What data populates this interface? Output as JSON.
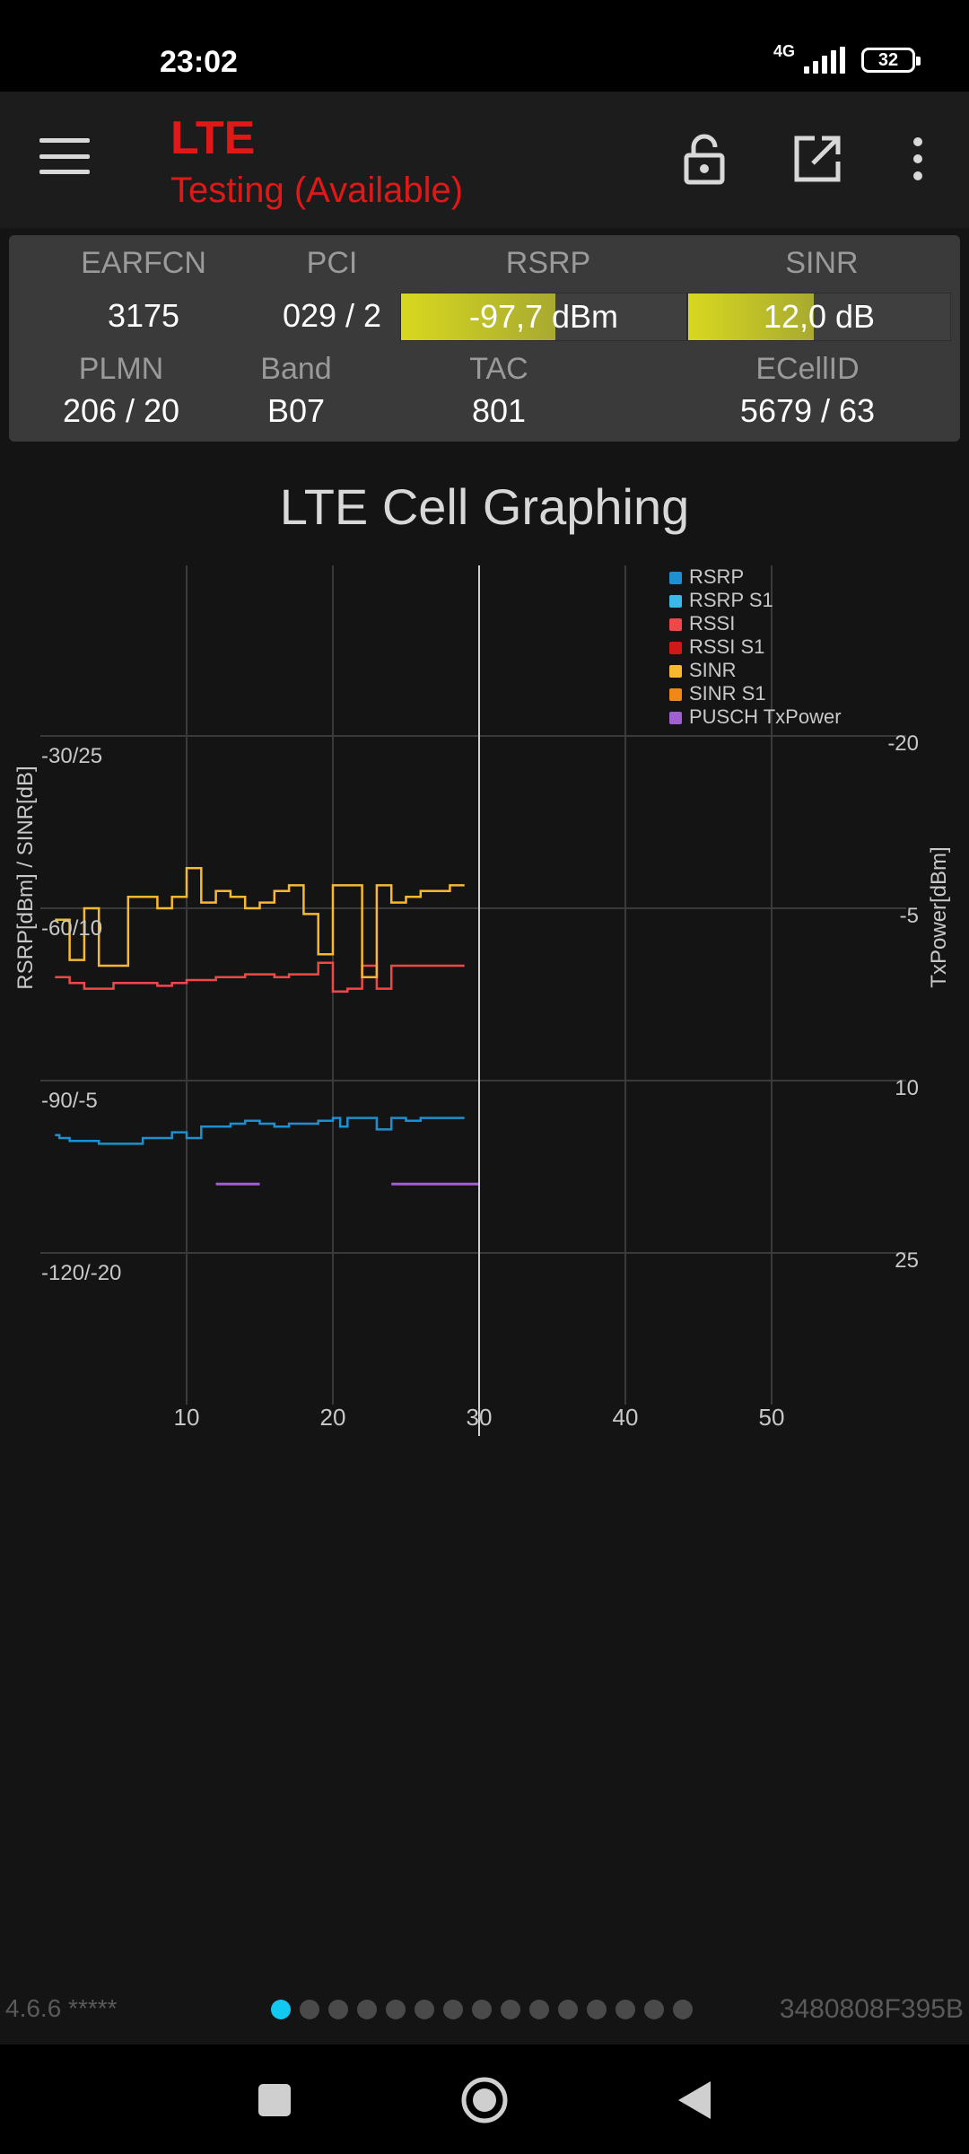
{
  "status_bar": {
    "time": "23:02",
    "network": "4G",
    "battery": "32"
  },
  "app_bar": {
    "title": "LTE",
    "subtitle": "Testing (Available)"
  },
  "info": {
    "earfcn_label": "EARFCN",
    "earfcn": "3175",
    "pci_label": "PCI",
    "pci": "029 / 2",
    "rsrp_label": "RSRP",
    "rsrp": "-97,7 dBm",
    "rsrp_level": 0.54,
    "sinr_label": "SINR",
    "sinr": "12,0 dB",
    "sinr_level": 0.48,
    "plmn_label": "PLMN",
    "plmn": "206 / 20",
    "band_label": "Band",
    "band": "B07",
    "tac_label": "TAC",
    "tac": "801",
    "ecellid_label": "ECellID",
    "ecellid": "5679 / 63"
  },
  "graph": {
    "title": "LTE Cell Graphing",
    "left_axis_label": "RSRP[dBm] / SINR[dB]",
    "right_axis_label": "TxPower[dBm]",
    "left_ticks": [
      "-30/25",
      "-60/10",
      "-90/-5",
      "-120/-20"
    ],
    "right_ticks": [
      "-20",
      "-5",
      "10",
      "25"
    ],
    "x_ticks": [
      "10",
      "20",
      "30",
      "40",
      "50"
    ],
    "legend": [
      {
        "name": "RSRP",
        "color": "#1e90d0"
      },
      {
        "name": "RSRP S1",
        "color": "#3ab8e8"
      },
      {
        "name": "RSSI",
        "color": "#f04848"
      },
      {
        "name": "RSSI S1",
        "color": "#d01818"
      },
      {
        "name": "SINR",
        "color": "#f8b830"
      },
      {
        "name": "SINR S1",
        "color": "#f08818"
      },
      {
        "name": "PUSCH TxPower",
        "color": "#a060d0"
      }
    ]
  },
  "chart_data": {
    "type": "line",
    "title": "LTE Cell Graphing",
    "xlabel": "",
    "ylabel": "RSRP[dBm] / SINR[dB]",
    "y2label": "TxPower[dBm]",
    "xlim": [
      0,
      60
    ],
    "cursor_x": 30,
    "legend_position": "top-right",
    "grid": true,
    "series": [
      {
        "name": "RSRP",
        "axis": "rsrp",
        "x": [
          1,
          1.3,
          2,
          4,
          6,
          7,
          8,
          9,
          10,
          11,
          12,
          13,
          14,
          15,
          16,
          17,
          18,
          19,
          20,
          20.5,
          21,
          22,
          23,
          24,
          25,
          26,
          27,
          28,
          29
        ],
        "y": [
          -99.5,
          -100,
          -100.5,
          -101,
          -101,
          -100,
          -100,
          -99,
          -100,
          -98,
          -98,
          -97.5,
          -97,
          -97.5,
          -98,
          -97.5,
          -97.5,
          -97,
          -96.5,
          -98,
          -96.5,
          -96.5,
          -98.5,
          -96.5,
          -97,
          -96.5,
          -96.5,
          -96.5,
          -96.5
        ]
      },
      {
        "name": "RSSI",
        "axis": "rsrp",
        "x": [
          1,
          2,
          3,
          4,
          5,
          6,
          7,
          8,
          9,
          10,
          11,
          12,
          13,
          14,
          15,
          16,
          17,
          18,
          19,
          20,
          21,
          22,
          23,
          24,
          25,
          26,
          27,
          28,
          29
        ],
        "y": [
          -72,
          -73,
          -74,
          -74,
          -73,
          -73,
          -73,
          -73.5,
          -73,
          -72.5,
          -72.5,
          -72,
          -72,
          -71.5,
          -71.5,
          -72,
          -71.5,
          -71.5,
          -69.5,
          -74.5,
          -74,
          -70,
          -74,
          -70,
          -70,
          -70,
          -70,
          -70,
          -70
        ]
      },
      {
        "name": "SINR",
        "axis": "sinr",
        "x": [
          1,
          2,
          3,
          4,
          5,
          6,
          7,
          8,
          9,
          10,
          11,
          12,
          13,
          14,
          15,
          16,
          17,
          18,
          19,
          20,
          21,
          22,
          23,
          24,
          25,
          26,
          27,
          28,
          29
        ],
        "y": [
          9,
          5.5,
          10,
          5,
          5,
          11,
          11,
          10,
          11,
          13.5,
          10.5,
          11.5,
          11,
          10,
          10.5,
          11.5,
          12,
          9.5,
          6,
          12,
          12,
          4,
          12,
          10.5,
          11,
          11.5,
          11.5,
          12,
          12
        ]
      },
      {
        "name": "PUSCH TxPower",
        "axis": "tx",
        "x": [
          12,
          15
        ],
        "y": [
          19,
          19
        ]
      },
      {
        "name": "PUSCH TxPower",
        "axis": "tx",
        "x": [
          24,
          30
        ],
        "y": [
          19,
          19
        ]
      }
    ]
  }
}
